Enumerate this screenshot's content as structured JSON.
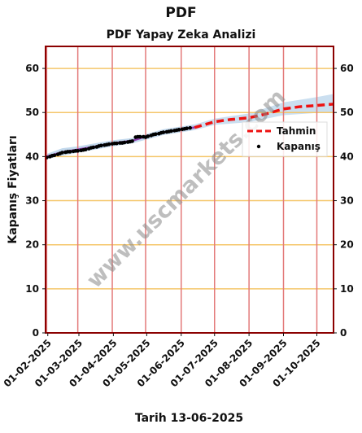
{
  "page": {
    "title": "PDF",
    "subtitle": "PDF Yapay Zeka Analizi",
    "footer": "Tarih 13-06-2025",
    "watermark": "www.uscmarkets.com"
  },
  "chart_data": {
    "type": "line",
    "title": "PDF Yapay Zeka Analizi",
    "xlabel": "",
    "ylabel": "Kapanış Fiyatları",
    "ylim": [
      0,
      65
    ],
    "yticks": [
      0,
      10,
      20,
      30,
      40,
      50,
      60
    ],
    "xlim": [
      "2025-01-30",
      "2025-10-16"
    ],
    "xticks": [
      "01-02-2025",
      "01-03-2025",
      "01-04-2025",
      "01-05-2025",
      "01-06-2025",
      "01-07-2025",
      "01-08-2025",
      "01-09-2025",
      "01-10-2025"
    ],
    "grid": true,
    "legend_position": "right",
    "series": [
      {
        "name": "Kapanış",
        "style": "scatter",
        "color": "#000000",
        "points": [
          [
            "2025-01-31",
            39.8
          ],
          [
            "2025-02-03",
            40.0
          ],
          [
            "2025-02-05",
            40.2
          ],
          [
            "2025-02-07",
            40.3
          ],
          [
            "2025-02-10",
            40.5
          ],
          [
            "2025-02-12",
            40.7
          ],
          [
            "2025-02-14",
            40.9
          ],
          [
            "2025-02-17",
            41.0
          ],
          [
            "2025-02-19",
            41.1
          ],
          [
            "2025-02-21",
            41.1
          ],
          [
            "2025-02-24",
            41.2
          ],
          [
            "2025-02-26",
            41.3
          ],
          [
            "2025-02-28",
            41.3
          ],
          [
            "2025-03-03",
            41.4
          ],
          [
            "2025-03-05",
            41.5
          ],
          [
            "2025-03-07",
            41.6
          ],
          [
            "2025-03-10",
            41.8
          ],
          [
            "2025-03-12",
            42.0
          ],
          [
            "2025-03-14",
            42.1
          ],
          [
            "2025-03-17",
            42.2
          ],
          [
            "2025-03-19",
            42.4
          ],
          [
            "2025-03-21",
            42.5
          ],
          [
            "2025-03-24",
            42.6
          ],
          [
            "2025-03-26",
            42.7
          ],
          [
            "2025-03-28",
            42.8
          ],
          [
            "2025-03-31",
            42.9
          ],
          [
            "2025-04-02",
            43.0
          ],
          [
            "2025-04-04",
            43.0
          ],
          [
            "2025-04-07",
            43.1
          ],
          [
            "2025-04-09",
            43.1
          ],
          [
            "2025-04-11",
            43.2
          ],
          [
            "2025-04-14",
            43.3
          ],
          [
            "2025-04-16",
            43.4
          ],
          [
            "2025-04-18",
            43.5
          ],
          [
            "2025-04-21",
            44.4
          ],
          [
            "2025-04-23",
            44.5
          ],
          [
            "2025-04-25",
            44.5
          ],
          [
            "2025-04-28",
            44.5
          ],
          [
            "2025-04-30",
            44.4
          ],
          [
            "2025-05-02",
            44.6
          ],
          [
            "2025-05-05",
            44.8
          ],
          [
            "2025-05-07",
            45.0
          ],
          [
            "2025-05-09",
            45.1
          ],
          [
            "2025-05-12",
            45.2
          ],
          [
            "2025-05-14",
            45.4
          ],
          [
            "2025-05-16",
            45.5
          ],
          [
            "2025-05-19",
            45.6
          ],
          [
            "2025-05-21",
            45.7
          ],
          [
            "2025-05-23",
            45.8
          ],
          [
            "2025-05-26",
            45.9
          ],
          [
            "2025-05-28",
            46.0
          ],
          [
            "2025-05-30",
            46.1
          ],
          [
            "2025-06-02",
            46.2
          ],
          [
            "2025-06-04",
            46.3
          ],
          [
            "2025-06-06",
            46.4
          ],
          [
            "2025-06-09",
            46.5
          ]
        ]
      },
      {
        "name": "",
        "style": "line",
        "color": "#8e3fb0",
        "points": [
          [
            "2025-01-31",
            40.0
          ],
          [
            "2025-02-14",
            41.0
          ],
          [
            "2025-02-28",
            41.6
          ],
          [
            "2025-03-14",
            42.2
          ],
          [
            "2025-03-31",
            43.0
          ],
          [
            "2025-04-18",
            43.6
          ],
          [
            "2025-05-02",
            44.7
          ],
          [
            "2025-05-16",
            45.5
          ],
          [
            "2025-05-30",
            46.1
          ],
          [
            "2025-06-13",
            46.6
          ]
        ]
      },
      {
        "name": "Tahmin",
        "style": "dashed",
        "color": "#ee1111",
        "points": [
          [
            "2025-06-13",
            46.6
          ],
          [
            "2025-06-20",
            47.1
          ],
          [
            "2025-07-01",
            47.9
          ],
          [
            "2025-07-15",
            48.4
          ],
          [
            "2025-08-01",
            48.8
          ],
          [
            "2025-08-15",
            49.6
          ],
          [
            "2025-09-01",
            50.8
          ],
          [
            "2025-09-15",
            51.3
          ],
          [
            "2025-10-01",
            51.6
          ],
          [
            "2025-10-16",
            51.9
          ]
        ],
        "band_upper": [
          [
            "2025-06-13",
            47.3
          ],
          [
            "2025-07-01",
            48.6
          ],
          [
            "2025-08-01",
            49.8
          ],
          [
            "2025-09-01",
            52.3
          ],
          [
            "2025-10-01",
            53.5
          ],
          [
            "2025-10-16",
            54.2
          ]
        ],
        "band_lower": [
          [
            "2025-06-13",
            46.0
          ],
          [
            "2025-07-01",
            47.2
          ],
          [
            "2025-08-01",
            47.8
          ],
          [
            "2025-09-01",
            49.4
          ],
          [
            "2025-10-01",
            49.9
          ],
          [
            "2025-10-16",
            50.0
          ]
        ]
      }
    ],
    "history_band_upper": [
      [
        "2025-01-31",
        40.6
      ],
      [
        "2025-02-14",
        41.9
      ],
      [
        "2025-02-28",
        42.3
      ],
      [
        "2025-03-31",
        43.7
      ],
      [
        "2025-04-18",
        44.2
      ],
      [
        "2025-05-16",
        46.2
      ],
      [
        "2025-06-13",
        47.3
      ]
    ],
    "history_band_lower": [
      [
        "2025-01-31",
        39.4
      ],
      [
        "2025-02-14",
        40.2
      ],
      [
        "2025-02-28",
        40.9
      ],
      [
        "2025-03-31",
        42.3
      ],
      [
        "2025-04-18",
        43.0
      ],
      [
        "2025-05-16",
        44.9
      ],
      [
        "2025-06-13",
        46.0
      ]
    ],
    "vertical_lines": [
      "2025-01-31",
      "2025-02-28",
      "2025-03-31",
      "2025-04-30",
      "2025-06-01",
      "2025-07-01",
      "2025-08-01",
      "2025-09-01",
      "2025-10-01"
    ],
    "colors": {
      "hgrid": "#f5c66a",
      "vline": "#e37a7a",
      "frame": "#8b0000",
      "band": "#a9c9e6"
    }
  }
}
